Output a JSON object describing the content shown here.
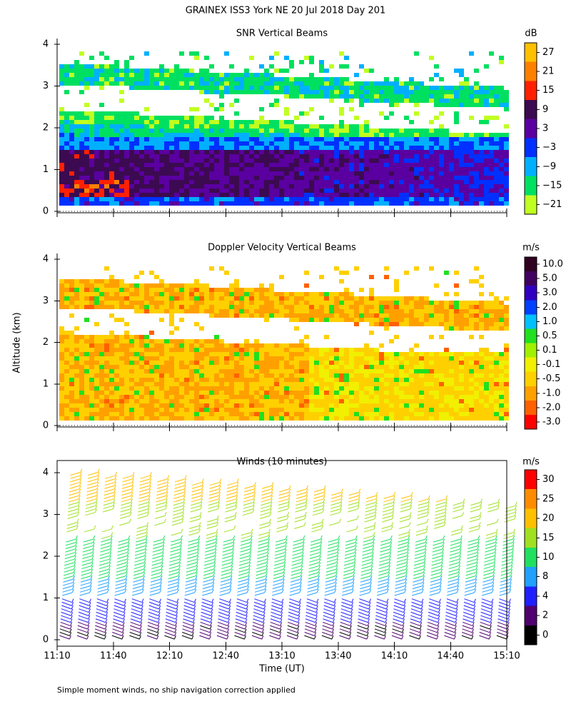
{
  "title": "GRAINEX ISS3 York NE  20 Jul 2018 Day 201",
  "y_axis_label": "Altitude (km)",
  "x_axis_label": "Time (UT)",
  "footnote": "Simple moment winds, no ship navigation correction applied",
  "x_ticks": [
    "11:10",
    "11:40",
    "12:10",
    "12:40",
    "13:10",
    "13:40",
    "14:10",
    "14:40",
    "15:10"
  ],
  "y_ticks": [
    0,
    1,
    2,
    3,
    4
  ],
  "panels": [
    {
      "title": "SNR Vertical Beams",
      "units": "dB",
      "colorbar": {
        "labels": [
          27,
          21,
          15,
          9,
          3,
          "−3",
          "−9",
          "−15",
          "−21"
        ],
        "colors": [
          "#ffc000",
          "#ff8000",
          "#ff2000",
          "#3c0a50",
          "#5a00a0",
          "#0030ff",
          "#00b0ff",
          "#00e060",
          "#c0ff20"
        ]
      }
    },
    {
      "title": "Doppler Velocity Vertical Beams",
      "units": "m/s",
      "colorbar": {
        "labels": [
          "10.0",
          "5.0",
          "3.0",
          "2.0",
          "1.0",
          "0.5",
          "0.1",
          "-0.1",
          "-0.5",
          "-1.0",
          "-2.0",
          "-3.0"
        ],
        "colors": [
          "#300020",
          "#400060",
          "#3000c0",
          "#0040ff",
          "#00c0ff",
          "#20e020",
          "#a0f000",
          "#f0f000",
          "#ffd000",
          "#ffa000",
          "#ff6000",
          "#ff0000"
        ]
      }
    },
    {
      "title": "Winds (10 minutes)",
      "units": "m/s",
      "colorbar": {
        "labels": [
          30,
          25,
          20,
          15,
          10,
          8,
          4,
          2,
          0
        ],
        "colors": [
          "#ff0000",
          "#ff8c00",
          "#ffc000",
          "#a0e020",
          "#20e060",
          "#20a0ff",
          "#2020ff",
          "#500070",
          "#000000"
        ]
      }
    }
  ]
}
